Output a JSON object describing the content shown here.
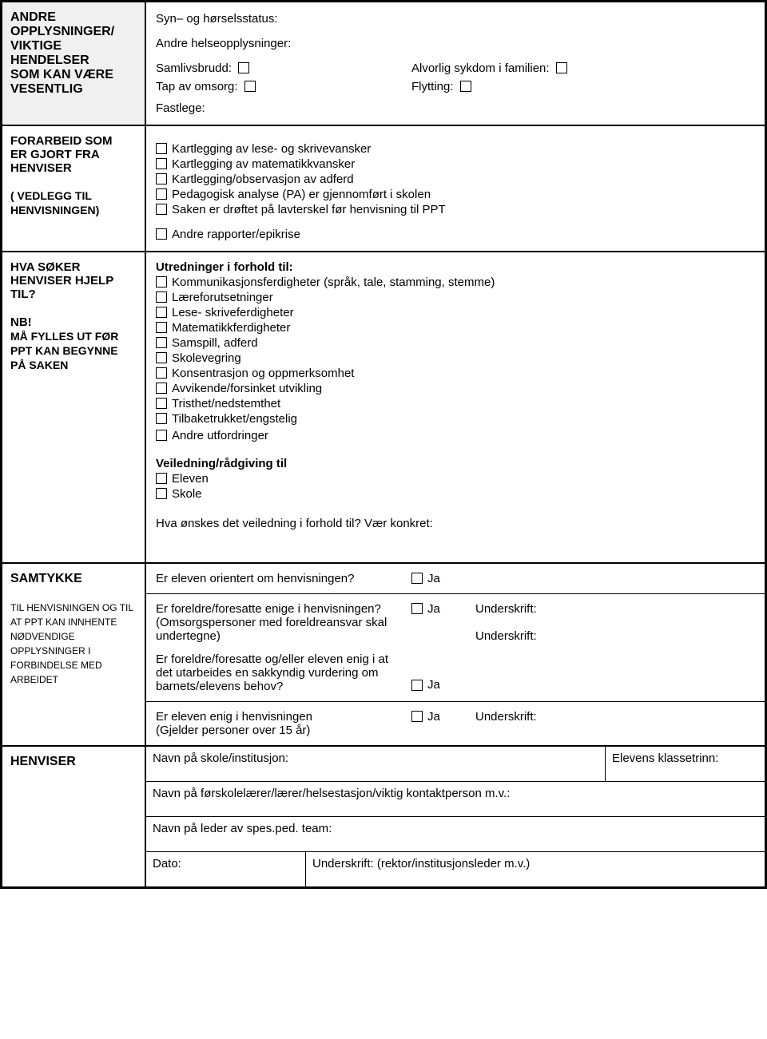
{
  "section1": {
    "title1": "Andre",
    "title2": "opplysninger/",
    "title3": "viktige",
    "title4": "hendelser",
    "title5": "som kan være",
    "title6": "vesentlig",
    "syn": "Syn– og hørselsstatus:",
    "andre_helse": "Andre helseopplysninger:",
    "samlivsbrudd": "Samlivsbrudd:",
    "alvorlig": "Alvorlig sykdom i familien:",
    "tap": "Tap av omsorg:",
    "flytting": "Flytting:",
    "fastlege": "Fastlege:"
  },
  "section2": {
    "title1": "Forarbeid som",
    "title2": "er gjort fra",
    "title3": "Henviser",
    "title4": "( vedlegg til henvisningen)",
    "items": [
      "Kartlegging av lese- og skrivevansker",
      "Kartlegging av matematikkvansker",
      "Kartlegging/observasjon av adferd",
      "Pedagogisk analyse (PA) er gjennomført i skolen",
      "Saken er drøftet på lavterskel før henvisning til PPT"
    ],
    "andre_rapporter": "Andre rapporter/epikrise"
  },
  "section3": {
    "title1": "Hva søker",
    "title2": "henviser hjelp",
    "title3": "til?",
    "nb": "NB!",
    "nb2": "må fylles ut før",
    "nb3": "PPT kan begynne",
    "nb4": "på saken",
    "utredninger_head": "Utredninger i forhold til:",
    "utredninger": [
      "Kommunikasjonsferdigheter (språk, tale, stamming, stemme)",
      "Læreforutsetninger",
      "Lese- skriveferdigheter",
      "Matematikkferdigheter",
      "Samspill, adferd",
      "Skolevegring",
      "Konsentrasjon og oppmerksomhet",
      "Avvikende/forsinket utvikling",
      "Tristhet/nedstemthet",
      "Tilbaketrukket/engstelig"
    ],
    "andre_utfordringer": "Andre utfordringer",
    "veiledning_head": "Veiledning/rådgiving til",
    "veiledning": [
      "Eleven",
      "Skole"
    ],
    "onskes": "Hva ønskes det veiledning i forhold til? Vær konkret:"
  },
  "section4": {
    "title": "Samtykke",
    "subtitle": "til henvisningen og til at PPT kan innhente nødvendige opplysninger i forbindelse med arbeidet",
    "q1": "Er eleven orientert om henvisningen?",
    "q2a": "Er foreldre/foresatte enige i henvisningen?",
    "q2b": "(Omsorgspersoner med foreldreansvar skal undertegne)",
    "q3": "Er foreldre/foresatte og/eller eleven enig i at det utarbeides en sakkyndig vurdering om barnets/elevens behov?",
    "q4a": "Er eleven enig i henvisningen",
    "q4b": "(Gjelder personer over 15 år)",
    "ja": "Ja",
    "underskrift": "Underskrift:"
  },
  "section5": {
    "title": "Henviser",
    "navn_skole": "Navn på skole/institusjon:",
    "klassetrinn": "Elevens klassetrinn:",
    "navn_laerer": "Navn på førskolelærer/lærer/helsestasjon/viktig kontaktperson m.v.:",
    "navn_leder": "Navn på leder av spes.ped. team:",
    "dato": "Dato:",
    "underskrift": "Underskrift: (rektor/institusjonsleder m.v.)"
  }
}
